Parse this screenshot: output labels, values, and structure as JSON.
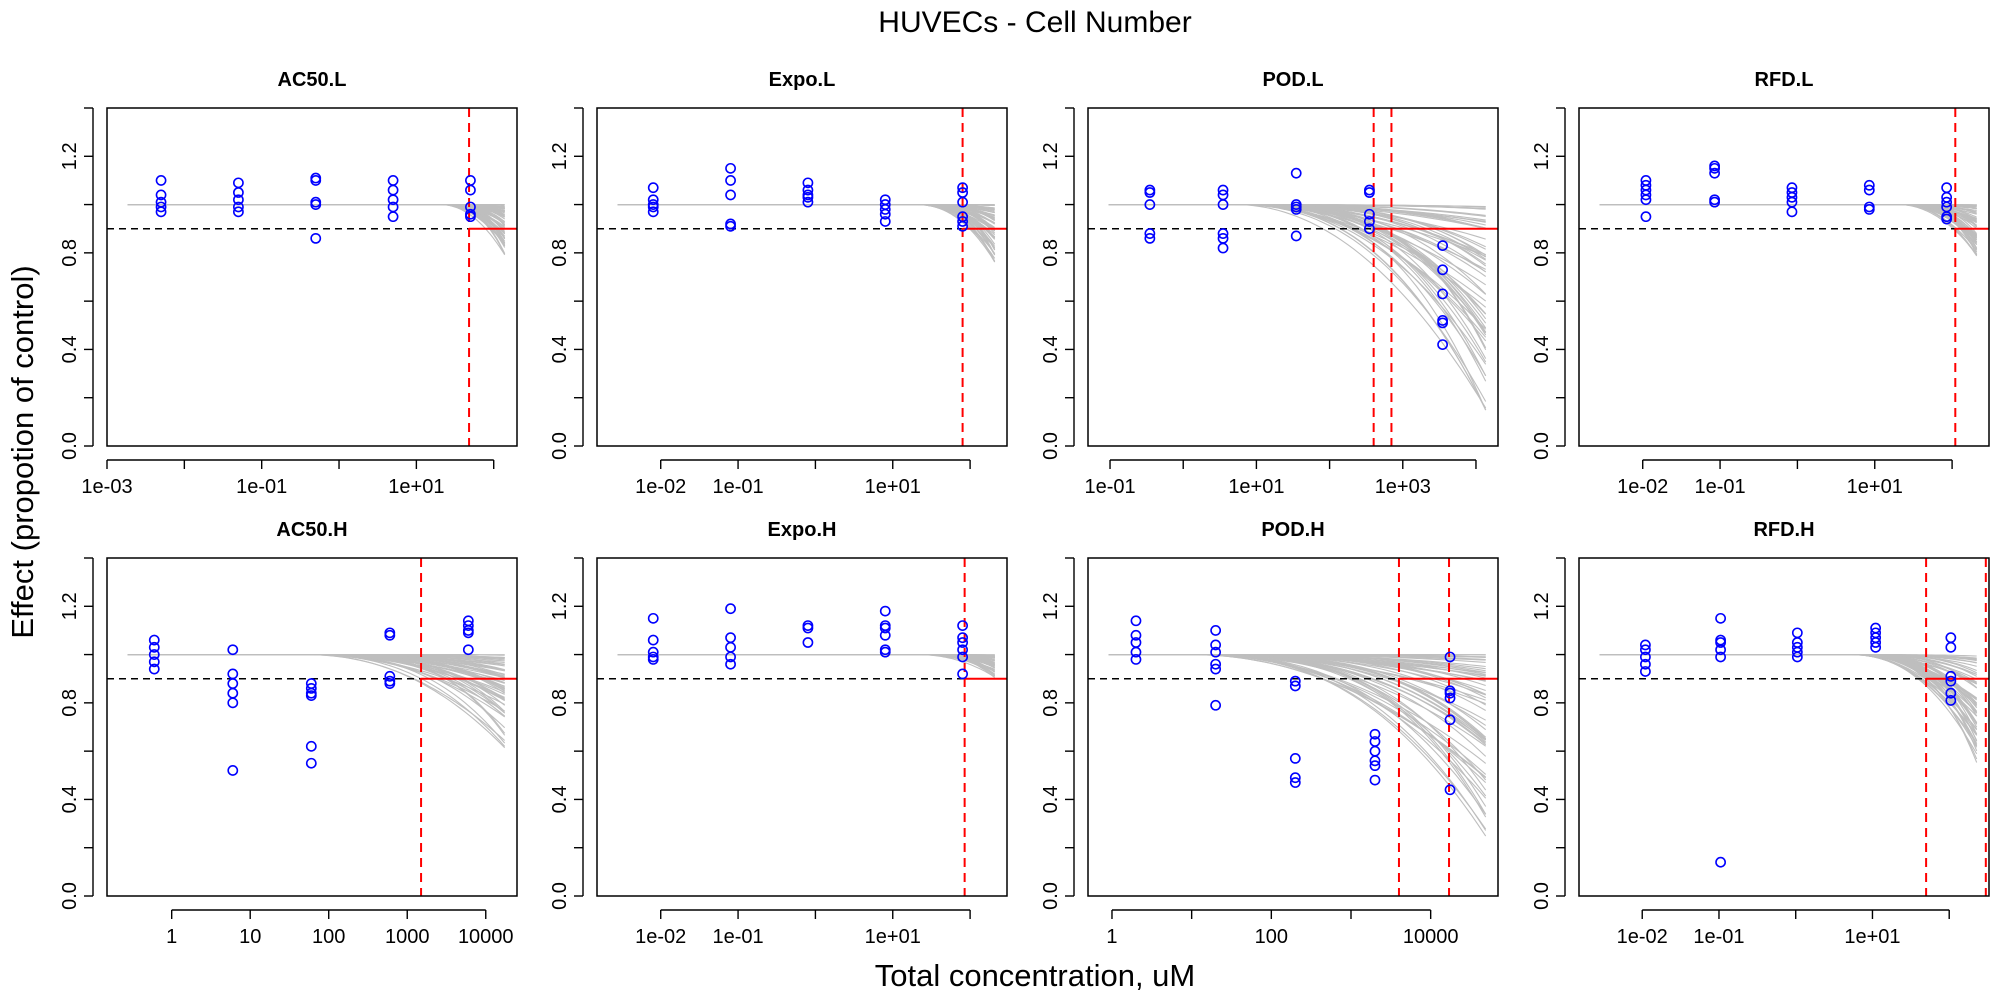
{
  "title": "HUVECs -  Cell Number",
  "xlabel": "Total concentration, uM",
  "ylabel": "Effect (propotion of control)",
  "colors": {
    "points": "#0000ff",
    "curves": "#bebebe",
    "ref_dash": "#000000",
    "vline": "#ff0000"
  },
  "chart_data": [
    {
      "type": "scatter",
      "title": "AC50.L",
      "xscale": "log10",
      "xlim": [
        0.001,
        200
      ],
      "ylim": [
        0.0,
        1.4
      ],
      "xticks": [
        "1e-03",
        "1e-01",
        "1e+01"
      ],
      "yticks": [
        "0.0",
        "0.4",
        "0.8",
        "1.2"
      ],
      "threshold_y": 0.9,
      "vlines": [
        48
      ],
      "curves": {
        "fit_start": 20,
        "min_end": 0.79
      },
      "points": [
        {
          "x": 0.005,
          "y": [
            1.1,
            1.04,
            1.01,
            0.99,
            0.97
          ]
        },
        {
          "x": 0.05,
          "y": [
            1.09,
            1.05,
            1.02,
            0.99,
            0.97
          ]
        },
        {
          "x": 0.5,
          "y": [
            1.11,
            1.1,
            1.01,
            1.0,
            0.86
          ]
        },
        {
          "x": 5,
          "y": [
            1.1,
            1.06,
            1.02,
            0.99,
            0.95
          ]
        },
        {
          "x": 50,
          "y": [
            1.1,
            1.06,
            0.99,
            0.96,
            0.95
          ]
        }
      ]
    },
    {
      "type": "scatter",
      "title": "Expo.L",
      "xscale": "log10",
      "xlim": [
        0.0015,
        300
      ],
      "ylim": [
        0.0,
        1.4
      ],
      "xticks": [
        "1e-02",
        "1e-01",
        "1e+01"
      ],
      "yticks": [
        "0.0",
        "0.4",
        "0.8",
        "1.2"
      ],
      "threshold_y": 0.9,
      "vlines": [
        80
      ],
      "curves": {
        "fit_start": 20,
        "min_end": 0.76
      },
      "points": [
        {
          "x": 0.008,
          "y": [
            1.07,
            1.02,
            1.0,
            0.99,
            0.97
          ]
        },
        {
          "x": 0.08,
          "y": [
            1.15,
            1.1,
            1.04,
            0.92,
            0.91
          ]
        },
        {
          "x": 0.8,
          "y": [
            1.09,
            1.06,
            1.04,
            1.03,
            1.01
          ]
        },
        {
          "x": 8,
          "y": [
            1.02,
            1.0,
            0.98,
            0.96,
            0.93
          ]
        },
        {
          "x": 80,
          "y": [
            1.07,
            1.05,
            1.01,
            0.95,
            0.93,
            0.91
          ]
        }
      ]
    },
    {
      "type": "scatter",
      "title": "POD.L",
      "xscale": "log10",
      "xlim": [
        0.05,
        20000
      ],
      "ylim": [
        0.0,
        1.4
      ],
      "xticks": [
        "1e-01",
        "1e+01",
        "1e+03"
      ],
      "yticks": [
        "0.0",
        "0.4",
        "0.8",
        "1.2"
      ],
      "threshold_y": 0.9,
      "vlines": [
        400,
        700
      ],
      "curves": {
        "fit_start": 5,
        "min_end": 0.11
      },
      "points": [
        {
          "x": 0.35,
          "y": [
            1.06,
            1.05,
            1.0,
            0.88,
            0.86
          ]
        },
        {
          "x": 3.5,
          "y": [
            1.06,
            1.04,
            1.0,
            0.88,
            0.86,
            0.82
          ]
        },
        {
          "x": 35,
          "y": [
            1.13,
            1.0,
            0.99,
            0.98,
            0.87
          ]
        },
        {
          "x": 350,
          "y": [
            1.06,
            1.05,
            0.96,
            0.93,
            0.9
          ]
        },
        {
          "x": 3500,
          "y": [
            0.83,
            0.73,
            0.63,
            0.52,
            0.51,
            0.42
          ]
        }
      ]
    },
    {
      "type": "scatter",
      "title": "RFD.L",
      "xscale": "log10",
      "xlim": [
        0.0015,
        300
      ],
      "ylim": [
        0.0,
        1.4
      ],
      "xticks": [
        "1e-02",
        "1e-01",
        "1e+01"
      ],
      "yticks": [
        "0.0",
        "0.4",
        "0.8",
        "1.2"
      ],
      "threshold_y": 0.9,
      "vlines": [
        110
      ],
      "curves": {
        "fit_start": 20,
        "min_end": 0.78
      },
      "points": [
        {
          "x": 0.011,
          "y": [
            1.1,
            1.08,
            1.06,
            1.04,
            1.02,
            0.95
          ]
        },
        {
          "x": 0.085,
          "y": [
            1.16,
            1.15,
            1.13,
            1.02,
            1.01
          ]
        },
        {
          "x": 0.85,
          "y": [
            1.07,
            1.05,
            1.03,
            1.01,
            0.97
          ]
        },
        {
          "x": 8.5,
          "y": [
            1.08,
            1.06,
            0.99,
            0.98
          ]
        },
        {
          "x": 85,
          "y": [
            1.07,
            1.03,
            1.01,
            0.99,
            0.95,
            0.94
          ]
        }
      ]
    },
    {
      "type": "scatter",
      "title": "AC50.H",
      "xscale": "log10",
      "xlim": [
        0.15,
        25000
      ],
      "ylim": [
        0.0,
        1.4
      ],
      "xticks": [
        "1",
        "10",
        "100",
        "1000",
        "10000"
      ],
      "yticks": [
        "0.0",
        "0.4",
        "0.8",
        "1.2"
      ],
      "threshold_y": 0.9,
      "vlines": [
        1500
      ],
      "curves": {
        "fit_start": 50,
        "min_end": 0.6
      },
      "points": [
        {
          "x": 0.6,
          "y": [
            1.06,
            1.03,
            1.0,
            0.97,
            0.94
          ]
        },
        {
          "x": 6,
          "y": [
            1.02,
            0.92,
            0.88,
            0.84,
            0.8,
            0.52
          ]
        },
        {
          "x": 60,
          "y": [
            0.88,
            0.86,
            0.84,
            0.83,
            0.62,
            0.55
          ]
        },
        {
          "x": 600,
          "y": [
            1.09,
            1.08,
            0.91,
            0.89,
            0.88
          ]
        },
        {
          "x": 6000,
          "y": [
            1.14,
            1.12,
            1.1,
            1.09,
            1.02
          ]
        }
      ]
    },
    {
      "type": "scatter",
      "title": "Expo.H",
      "xscale": "log10",
      "xlim": [
        0.0015,
        300
      ],
      "ylim": [
        0.0,
        1.4
      ],
      "xticks": [
        "1e-02",
        "1e-01",
        "1e+01"
      ],
      "yticks": [
        "0.0",
        "0.4",
        "0.8",
        "1.2"
      ],
      "threshold_y": 0.9,
      "vlines": [
        85
      ],
      "curves": {
        "fit_start": 20,
        "min_end": 0.9
      },
      "points": [
        {
          "x": 0.008,
          "y": [
            1.15,
            1.06,
            1.01,
            0.99,
            0.98
          ]
        },
        {
          "x": 0.08,
          "y": [
            1.19,
            1.07,
            1.03,
            0.99,
            0.96
          ]
        },
        {
          "x": 0.8,
          "y": [
            1.12,
            1.11,
            1.05
          ]
        },
        {
          "x": 8,
          "y": [
            1.18,
            1.12,
            1.11,
            1.08,
            1.02,
            1.01
          ]
        },
        {
          "x": 80,
          "y": [
            1.12,
            1.07,
            1.05,
            1.02,
            0.99,
            0.92
          ]
        }
      ]
    },
    {
      "type": "scatter",
      "title": "POD.H",
      "xscale": "log10",
      "xlim": [
        0.5,
        70000
      ],
      "ylim": [
        0.0,
        1.4
      ],
      "xticks": [
        "1",
        "100",
        "10000"
      ],
      "yticks": [
        "0.0",
        "0.4",
        "0.8",
        "1.2"
      ],
      "threshold_y": 0.9,
      "vlines": [
        4000,
        17000
      ],
      "curves": {
        "fit_start": 10,
        "min_end": 0.24
      },
      "points": [
        {
          "x": 2,
          "y": [
            1.14,
            1.08,
            1.05,
            1.01,
            0.98
          ]
        },
        {
          "x": 20,
          "y": [
            1.1,
            1.04,
            1.01,
            0.96,
            0.94,
            0.79
          ]
        },
        {
          "x": 200,
          "y": [
            0.89,
            0.87,
            0.57,
            0.49,
            0.47
          ]
        },
        {
          "x": 2000,
          "y": [
            0.67,
            0.64,
            0.6,
            0.56,
            0.54,
            0.48
          ]
        },
        {
          "x": 17500,
          "y": [
            0.99,
            0.85,
            0.84,
            0.82,
            0.73,
            0.44
          ]
        }
      ]
    },
    {
      "type": "scatter",
      "title": "RFD.H",
      "xscale": "log10",
      "xlim": [
        0.0015,
        330
      ],
      "ylim": [
        0.0,
        1.4
      ],
      "xticks": [
        "1e-02",
        "1e-01",
        "1e+01"
      ],
      "yticks": [
        "0.0",
        "0.4",
        "0.8",
        "1.2"
      ],
      "threshold_y": 0.9,
      "vlines": [
        50,
        300
      ],
      "curves": {
        "fit_start": 5,
        "min_end": 0.55
      },
      "points": [
        {
          "x": 0.011,
          "y": [
            1.04,
            1.02,
            0.99,
            0.96,
            0.93
          ]
        },
        {
          "x": 0.105,
          "y": [
            1.15,
            1.06,
            1.05,
            1.02,
            0.99,
            0.14
          ]
        },
        {
          "x": 1.05,
          "y": [
            1.09,
            1.05,
            1.03,
            1.01,
            0.99
          ]
        },
        {
          "x": 11,
          "y": [
            1.11,
            1.09,
            1.07,
            1.05,
            1.03
          ]
        },
        {
          "x": 105,
          "y": [
            1.07,
            1.03,
            0.91,
            0.89,
            0.84,
            0.81
          ]
        }
      ]
    }
  ]
}
